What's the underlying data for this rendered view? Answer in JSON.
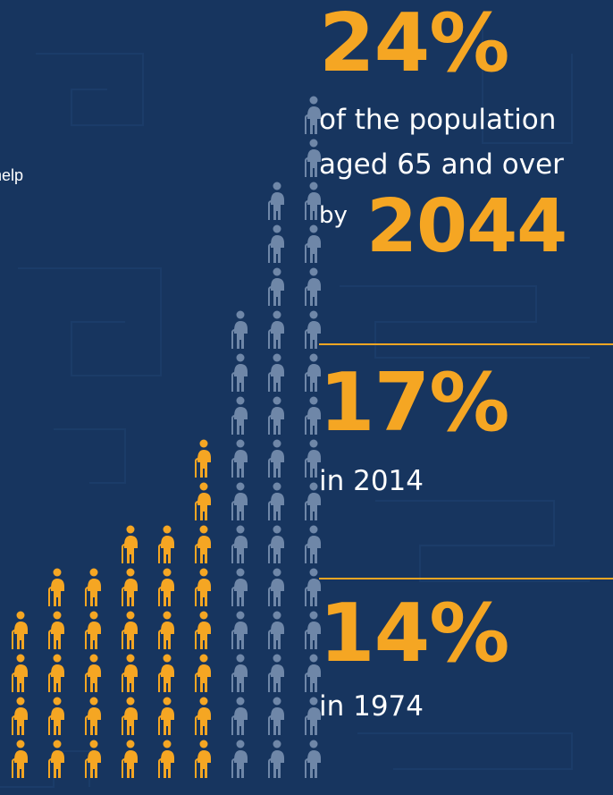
{
  "partial_text": "help",
  "stats": {
    "main_value": "24%",
    "main_line1": "of the population",
    "main_line2": "aged 65 and over",
    "main_by": "by",
    "main_year": "2044",
    "stat2_value": "17%",
    "stat2_label": "in 2014",
    "stat3_value": "14%",
    "stat3_label": "in 1974"
  },
  "pictogram": {
    "icon": "elderly-person-with-cane-icon",
    "highlight_color": "#f5a623",
    "base_color": "#6f87a8",
    "columns": [
      {
        "total": 4,
        "highlighted": 4
      },
      {
        "total": 5,
        "highlighted": 5
      },
      {
        "total": 5,
        "highlighted": 5
      },
      {
        "total": 6,
        "highlighted": 6
      },
      {
        "total": 6,
        "highlighted": 6
      },
      {
        "total": 8,
        "highlighted": 8
      },
      {
        "total": 11,
        "highlighted": 0
      },
      {
        "total": 14,
        "highlighted": 0
      },
      {
        "total": 16,
        "highlighted": 0
      }
    ]
  },
  "colors": {
    "background": "#17355f",
    "accent": "#f5a623",
    "text": "#ffffff"
  }
}
